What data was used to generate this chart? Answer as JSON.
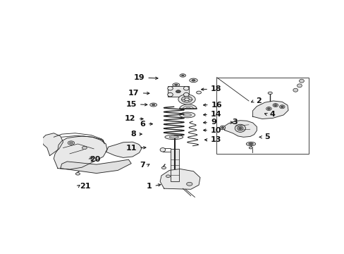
{
  "background_color": "#ffffff",
  "fig_width": 4.89,
  "fig_height": 3.6,
  "dpi": 100,
  "label_fontsize": 8,
  "arrow_color": "#111111",
  "text_color": "#111111",
  "label_positions": {
    "1": [
      0.415,
      0.205,
      "right",
      0.45,
      0.215
    ],
    "2": [
      0.79,
      0.64,
      "left",
      0.77,
      0.628
    ],
    "3": [
      0.7,
      0.53,
      "left",
      0.72,
      0.525
    ],
    "4": [
      0.84,
      0.57,
      "left",
      0.82,
      0.58
    ],
    "5": [
      0.82,
      0.455,
      "left",
      0.8,
      0.455
    ],
    "6": [
      0.39,
      0.522,
      "right",
      0.42,
      0.522
    ],
    "7": [
      0.39,
      0.31,
      "right",
      0.4,
      0.318
    ],
    "8": [
      0.355,
      0.47,
      "right",
      0.38,
      0.47
    ],
    "9": [
      0.62,
      0.53,
      "left",
      0.59,
      0.528
    ],
    "10": [
      0.62,
      0.49,
      "left",
      0.59,
      0.49
    ],
    "11": [
      0.358,
      0.4,
      "right",
      0.395,
      0.402
    ],
    "12": [
      0.355,
      0.548,
      "right",
      0.385,
      0.548
    ],
    "13": [
      0.62,
      0.44,
      "left",
      0.595,
      0.442
    ],
    "14": [
      0.62,
      0.57,
      "left",
      0.59,
      0.568
    ],
    "15": [
      0.358,
      0.622,
      "right",
      0.4,
      0.62
    ],
    "16": [
      0.622,
      0.62,
      "left",
      0.59,
      0.618
    ],
    "17": [
      0.368,
      0.68,
      "right",
      0.408,
      0.678
    ],
    "18": [
      0.62,
      0.7,
      "left",
      0.582,
      0.698
    ],
    "19": [
      0.388,
      0.758,
      "right",
      0.44,
      0.755
    ],
    "20": [
      0.165,
      0.34,
      "left",
      0.195,
      0.355
    ],
    "21": [
      0.13,
      0.202,
      "left",
      0.145,
      0.218
    ]
  }
}
